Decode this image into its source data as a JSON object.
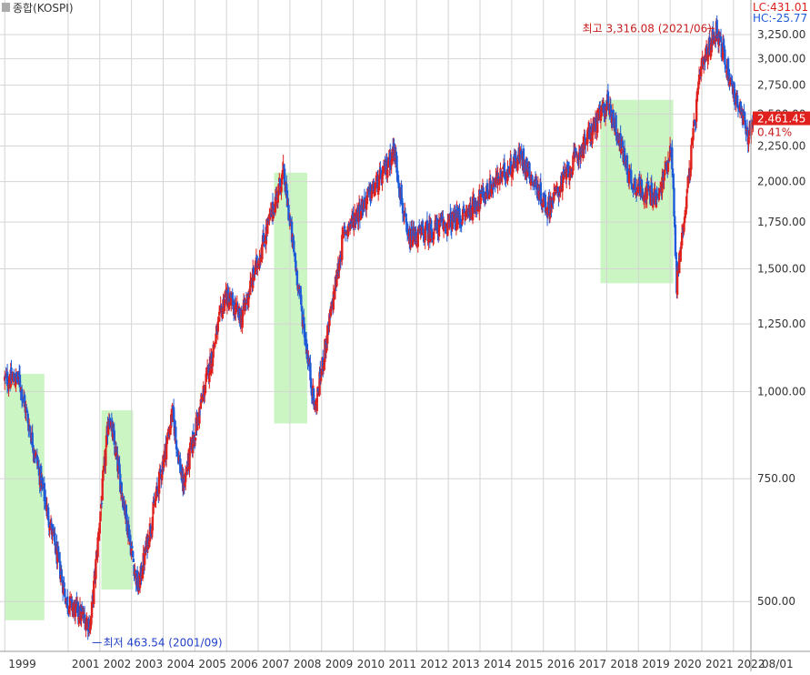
{
  "header": {
    "instrument": "종합(KOSPI)",
    "lc_label": "LC:431.01",
    "hc_label": "HC:-25.77"
  },
  "current": {
    "price_label": "2,461.45",
    "change_label": "0.41%"
  },
  "annotations": {
    "high_label": "최고 3,316.08 (2021/06)",
    "low_label": "최저 463.54 (2001/09)"
  },
  "colors": {
    "up": "#e0201c",
    "down": "#1f5bd8",
    "highlight": "#ccf5c4",
    "high_annotation": "#c81e1e",
    "low_annotation": "#1f3fc8"
  },
  "chart_data": {
    "type": "candlestick",
    "y_scale": "log",
    "ylim": [
      445,
      3400
    ],
    "xlim": [
      1998.85,
      2022.55
    ],
    "y_ticks": [
      "500.00",
      "750.00",
      "1,000.00",
      "1,250.00",
      "1,500.00",
      "1,750.00",
      "2,000.00",
      "2,250.00",
      "2,500.00",
      "2,750.00",
      "3,000.00",
      "3,250.00"
    ],
    "x_ticks": [
      "1999",
      "2001",
      "2002",
      "2003",
      "2004",
      "2005",
      "2006",
      "2007",
      "2008",
      "2009",
      "2010",
      "2011",
      "2012",
      "2013",
      "2014",
      "2015",
      "2016",
      "2017",
      "2018",
      "2019",
      "2020",
      "2021",
      "2022"
    ],
    "x_axis_end_label": "08/01",
    "highlight_periods": [
      {
        "start": 1999.0,
        "end": 2000.25,
        "low": 470,
        "high": 1060
      },
      {
        "start": 2002.05,
        "end": 2003.05,
        "low": 520,
        "high": 940
      },
      {
        "start": 2007.5,
        "end": 2008.55,
        "low": 900,
        "high": 2060
      },
      {
        "start": 2017.8,
        "end": 2020.1,
        "low": 1430,
        "high": 2620
      }
    ],
    "key_points": [
      {
        "date": "1999/06",
        "value": 1040
      },
      {
        "date": "2000/12",
        "value": 500
      },
      {
        "date": "2001/09",
        "value": 463.54
      },
      {
        "date": "2002/04",
        "value": 930
      },
      {
        "date": "2003/03",
        "value": 520
      },
      {
        "date": "2004/04",
        "value": 930
      },
      {
        "date": "2004/08",
        "value": 730
      },
      {
        "date": "2005/12",
        "value": 1380
      },
      {
        "date": "2006/06",
        "value": 1270
      },
      {
        "date": "2007/10",
        "value": 2060
      },
      {
        "date": "2008/10",
        "value": 940
      },
      {
        "date": "2009/09",
        "value": 1690
      },
      {
        "date": "2010/12",
        "value": 2050
      },
      {
        "date": "2011/04",
        "value": 2230
      },
      {
        "date": "2011/09",
        "value": 1650
      },
      {
        "date": "2013/06",
        "value": 1780
      },
      {
        "date": "2015/04",
        "value": 2180
      },
      {
        "date": "2016/02",
        "value": 1830
      },
      {
        "date": "2018/01",
        "value": 2600
      },
      {
        "date": "2018/10",
        "value": 1990
      },
      {
        "date": "2019/08",
        "value": 1890
      },
      {
        "date": "2020/01",
        "value": 2260
      },
      {
        "date": "2020/03",
        "value": 1430
      },
      {
        "date": "2020/12",
        "value": 2870
      },
      {
        "date": "2021/06",
        "value": 3316.08
      },
      {
        "date": "2022/01",
        "value": 2660
      },
      {
        "date": "2022/06",
        "value": 2330
      },
      {
        "date": "2022/08",
        "value": 2461.45
      }
    ]
  }
}
